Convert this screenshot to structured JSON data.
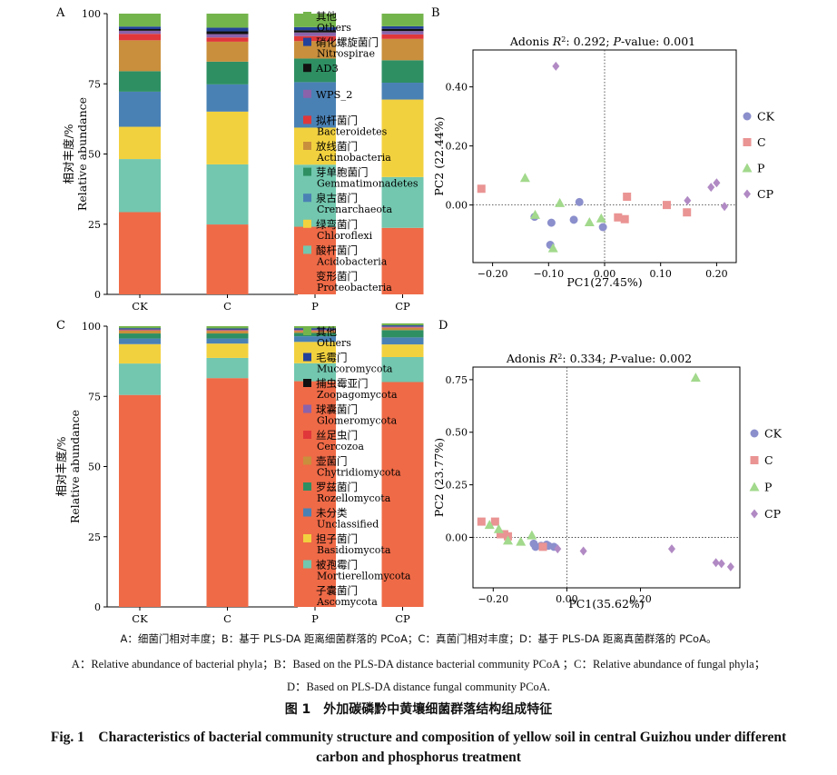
{
  "figure": {
    "caption_zh_labels": "A：细菌门相对丰度；B：基于 PLS-DA 距离细菌群落的 PCoA；C：真菌门相对丰度；D：基于 PLS-DA 距离真菌群落的 PCoA。",
    "caption_en_labels_1": "A：Relative abundance of bacterial phyla；B：Based on the PLS-DA distance bacterial community PCoA ；C：Relative abundance of fungal phyla；",
    "caption_en_labels_2": "D：Based on PLS-DA distance fungal community PCoA.",
    "title_zh": "图 1　外加碳磷黔中黄壤细菌群落结构组成特征",
    "title_en_1": "Fig. 1　Characteristics of bacterial community structure and composition of yellow soil in central Guizhou under different",
    "title_en_2": "carbon and phosphorus treatment"
  },
  "colors": {
    "Others": "#74b44c",
    "Nitrospirae": "#24429a",
    "AD3": "#111111",
    "WPS_2": "#8a63ab",
    "Bacteroidetes": "#e0373a",
    "Actinobacteria": "#c98f3c",
    "Gemmatimonadetes": "#2e8f63",
    "Crenarchaeota": "#4a81b5",
    "Chloroflexi": "#f2d13f",
    "Acidobacteria": "#72c7ae",
    "Proteobacteria": "#ef6a47",
    "CK": "#8b8fcc",
    "C": "#ea9494",
    "P": "#a2d98c",
    "CP": "#b18ac4"
  },
  "chart_data": [
    {
      "panel": "A",
      "type": "bar",
      "stacked": true,
      "xlabel": "",
      "ylabel_zh": "相对丰度/%",
      "ylabel_en": "Relative abundance",
      "ylim": [
        0,
        100
      ],
      "yticks": [
        0,
        25,
        50,
        75,
        100
      ],
      "categories": [
        "CK",
        "C",
        "P",
        "CP"
      ],
      "series": [
        {
          "name": "变形菌门 Proteobacteria",
          "color": "Proteobacteria",
          "values": [
            29.3,
            24.9,
            24.1,
            23.7
          ]
        },
        {
          "name": "酸杆菌门 Acidobacteria",
          "color": "Acidobacteria",
          "values": [
            18.9,
            21.4,
            22.1,
            18.1
          ]
        },
        {
          "name": "绿弯菌门 Chloroflexi",
          "color": "Chloroflexi",
          "values": [
            11.5,
            18.8,
            13.2,
            27.6
          ]
        },
        {
          "name": "泉古菌门 Crenarchaeota",
          "color": "Crenarchaeota",
          "values": [
            12.5,
            9.7,
            16.2,
            6.0
          ]
        },
        {
          "name": "芽单胞菌门 Gemmatimonadetes",
          "color": "Gemmatimonadetes",
          "values": [
            7.3,
            8.1,
            8.4,
            8.0
          ]
        },
        {
          "name": "放线菌门 Actinobacteria",
          "color": "Actinobacteria",
          "values": [
            11.0,
            7.1,
            6.2,
            7.6
          ]
        },
        {
          "name": "拟杆菌门 Bacteroidetes",
          "color": "Bacteroidetes",
          "values": [
            2.3,
            1.5,
            1.8,
            1.6
          ]
        },
        {
          "name": "WPS_2",
          "color": "WPS_2",
          "values": [
            1.1,
            1.2,
            1.3,
            1.2
          ]
        },
        {
          "name": "AD3",
          "color": "AD3",
          "values": [
            0.6,
            1.0,
            0.8,
            0.8
          ]
        },
        {
          "name": "硝化螺旋菌门 Nitrospirae",
          "color": "Nitrospirae",
          "values": [
            0.9,
            1.3,
            1.1,
            0.9
          ]
        },
        {
          "name": "其他 Others",
          "color": "Others",
          "values": [
            4.6,
            5.0,
            4.8,
            4.5
          ]
        }
      ],
      "legend": [
        {
          "zh": "其他",
          "en": "Others",
          "color": "Others"
        },
        {
          "zh": "硝化螺旋菌门",
          "en": "Nitrospirae",
          "color": "Nitrospirae"
        },
        {
          "zh": "",
          "en": "AD3",
          "color": "AD3"
        },
        {
          "zh": "",
          "en": "WPS_2",
          "color": "WPS_2"
        },
        {
          "zh": "拟杆菌门",
          "en": "Bacteroidetes",
          "color": "Bacteroidetes"
        },
        {
          "zh": "放线菌门",
          "en": "Actinobacteria",
          "color": "Actinobacteria"
        },
        {
          "zh": "芽单胞菌门",
          "en": "Gemmatimonadetes",
          "color": "Gemmatimonadetes"
        },
        {
          "zh": "泉古菌门",
          "en": "Crenarchaeota",
          "color": "Crenarchaeota"
        },
        {
          "zh": "绿弯菌门",
          "en": "Chloroflexi",
          "color": "Chloroflexi"
        },
        {
          "zh": "酸杆菌门",
          "en": "Acidobacteria",
          "color": "Acidobacteria"
        },
        {
          "zh": "变形菌门",
          "en": "Proteobacteria",
          "color": "Proteobacteria"
        }
      ]
    },
    {
      "panel": "B",
      "type": "scatter",
      "title_prefix": "Adonis ",
      "title_r2": "R",
      "title_middle": ": 0.292; ",
      "title_p": "P",
      "title_suffix": "-value: 0.001",
      "xlabel": "PC1(27.45%)",
      "ylabel": "PC2 (22.44%)",
      "xlim": [
        -0.235,
        0.235
      ],
      "ylim": [
        -0.195,
        0.525
      ],
      "xticks": [
        -0.2,
        -0.1,
        0.0,
        0.1,
        0.2
      ],
      "xtick_labels": [
        "−0.20",
        "−0.10",
        "0.00",
        "0.10",
        "0.20"
      ],
      "yticks": [
        0.0,
        0.2,
        0.4
      ],
      "ytick_labels": [
        "0.00",
        "0.20",
        "0.40"
      ],
      "series": [
        {
          "name": "CK",
          "marker": "circle",
          "points": [
            [
              -0.125,
              -0.04
            ],
            [
              -0.095,
              -0.06
            ],
            [
              -0.055,
              -0.05
            ],
            [
              -0.045,
              0.01
            ],
            [
              -0.097,
              -0.135
            ],
            [
              -0.003,
              -0.075
            ]
          ]
        },
        {
          "name": "C",
          "marker": "square",
          "points": [
            [
              -0.22,
              0.055
            ],
            [
              0.04,
              0.028
            ],
            [
              0.024,
              -0.042
            ],
            [
              0.036,
              -0.048
            ],
            [
              0.111,
              0.0
            ],
            [
              0.147,
              -0.025
            ]
          ]
        },
        {
          "name": "P",
          "marker": "triangle",
          "points": [
            [
              -0.142,
              0.092
            ],
            [
              -0.124,
              -0.033
            ],
            [
              -0.08,
              0.007
            ],
            [
              -0.092,
              -0.146
            ],
            [
              -0.027,
              -0.058
            ],
            [
              -0.006,
              -0.045
            ]
          ]
        },
        {
          "name": "CP",
          "marker": "diamond",
          "points": [
            [
              -0.087,
              0.47
            ],
            [
              0.148,
              0.015
            ],
            [
              0.19,
              0.06
            ],
            [
              0.2,
              0.075
            ],
            [
              0.214,
              -0.005
            ]
          ]
        }
      ]
    },
    {
      "panel": "C",
      "type": "bar",
      "stacked": true,
      "xlabel": "",
      "ylabel_zh": "相对丰度/%",
      "ylabel_en": "Relative abundance",
      "ylim": [
        0,
        100
      ],
      "yticks": [
        0,
        25,
        50,
        75,
        100
      ],
      "categories": [
        "CK",
        "C",
        "P",
        "CP"
      ],
      "series": [
        {
          "name": "子囊菌门 Ascomycota",
          "color": "Proteobacteria",
          "values": [
            75.5,
            81.5,
            80.4,
            80.1
          ]
        },
        {
          "name": "被孢霉门 Mortierellomycota",
          "color": "Acidobacteria",
          "values": [
            11.2,
            7.2,
            6.4,
            8.9
          ]
        },
        {
          "name": "担子菌门 Basidiomycota",
          "color": "Chloroflexi",
          "values": [
            6.9,
            5.1,
            7.6,
            4.5
          ]
        },
        {
          "name": "未分类 Unclassified",
          "color": "Crenarchaeota",
          "values": [
            2.0,
            1.8,
            2.0,
            2.5
          ]
        },
        {
          "name": "罗兹菌门 Rozellomycota",
          "color": "Gemmatimonadetes",
          "values": [
            1.8,
            1.8,
            1.2,
            2.6
          ]
        },
        {
          "name": "壶菌门 Chytridiomycota",
          "color": "Actinobacteria",
          "values": [
            1.0,
            0.9,
            0.7,
            0.8
          ]
        },
        {
          "name": "丝足虫门 Cercozoa",
          "color": "Bacteroidetes",
          "values": [
            0.2,
            0.2,
            0.2,
            0.2
          ]
        },
        {
          "name": "球囊菌门 Glomeromycota",
          "color": "WPS_2",
          "values": [
            0.2,
            0.2,
            0.2,
            0.2
          ]
        },
        {
          "name": "捕虫霉亚门 Zoopagomycota",
          "color": "AD3",
          "values": [
            0.1,
            0.1,
            0.1,
            0.1
          ]
        },
        {
          "name": "毛霉门 Mucoromycota",
          "color": "Nitrospirae",
          "values": [
            0.4,
            0.4,
            0.5,
            0.4
          ]
        },
        {
          "name": "其他 Others",
          "color": "Others",
          "values": [
            0.7,
            0.8,
            0.7,
            0.7
          ]
        }
      ],
      "legend": [
        {
          "zh": "其他",
          "en": "Others",
          "color": "Others"
        },
        {
          "zh": "毛霉门",
          "en": "Mucoromycota",
          "color": "Nitrospirae"
        },
        {
          "zh": "捕虫霉亚门",
          "en": "Zoopagomycota",
          "color": "AD3"
        },
        {
          "zh": "球囊菌门",
          "en": "Glomeromycota",
          "color": "WPS_2"
        },
        {
          "zh": "丝足虫门",
          "en": "Cercozoa",
          "color": "Bacteroidetes"
        },
        {
          "zh": "壶菌门",
          "en": "Chytridiomycota",
          "color": "Actinobacteria"
        },
        {
          "zh": "罗兹菌门",
          "en": "Rozellomycota",
          "color": "Gemmatimonadetes"
        },
        {
          "zh": "未分类",
          "en": "Unclassified",
          "color": "Crenarchaeota"
        },
        {
          "zh": "担子菌门",
          "en": "Basidiomycota",
          "color": "Chloroflexi"
        },
        {
          "zh": "被孢霉门",
          "en": "Mortierellomycota",
          "color": "Acidobacteria"
        },
        {
          "zh": "子囊菌门",
          "en": "Ascomycota",
          "color": "Proteobacteria"
        }
      ]
    },
    {
      "panel": "D",
      "type": "scatter",
      "title_prefix": "Adonis ",
      "title_r2": "R",
      "title_middle": ": 0.334; ",
      "title_p": "P",
      "title_suffix": "-value: 0.002",
      "xlabel": "PC1(35.62%)",
      "ylabel": "PC2 (23.77%)",
      "xlim": [
        -0.255,
        0.47
      ],
      "ylim": [
        -0.24,
        0.81
      ],
      "xticks": [
        -0.2,
        0.0,
        0.2
      ],
      "xtick_labels": [
        "−0.20",
        "0.00",
        "0.20"
      ],
      "yticks": [
        0.0,
        0.25,
        0.5,
        0.75
      ],
      "ytick_labels": [
        "0.00",
        "0.25",
        "0.50",
        "0.75"
      ],
      "series": [
        {
          "name": "CK",
          "marker": "circle",
          "points": [
            [
              -0.09,
              -0.03
            ],
            [
              -0.085,
              -0.045
            ],
            [
              -0.07,
              -0.04
            ],
            [
              -0.055,
              -0.035
            ],
            [
              -0.05,
              -0.04
            ],
            [
              -0.035,
              -0.045
            ]
          ]
        },
        {
          "name": "C",
          "marker": "square",
          "points": [
            [
              -0.232,
              0.075
            ],
            [
              -0.195,
              0.075
            ],
            [
              -0.18,
              0.015
            ],
            [
              -0.17,
              0.015
            ],
            [
              -0.16,
              0.005
            ],
            [
              -0.065,
              -0.045
            ]
          ]
        },
        {
          "name": "P",
          "marker": "triangle",
          "points": [
            [
              -0.21,
              0.06
            ],
            [
              -0.185,
              0.04
            ],
            [
              -0.16,
              -0.015
            ],
            [
              -0.125,
              -0.02
            ],
            [
              -0.095,
              0.01
            ],
            [
              0.35,
              0.76
            ]
          ]
        },
        {
          "name": "CP",
          "marker": "diamond",
          "points": [
            [
              -0.025,
              -0.055
            ],
            [
              0.045,
              -0.065
            ],
            [
              0.285,
              -0.055
            ],
            [
              0.405,
              -0.12
            ],
            [
              0.42,
              -0.125
            ],
            [
              0.445,
              -0.14
            ]
          ]
        }
      ]
    }
  ]
}
